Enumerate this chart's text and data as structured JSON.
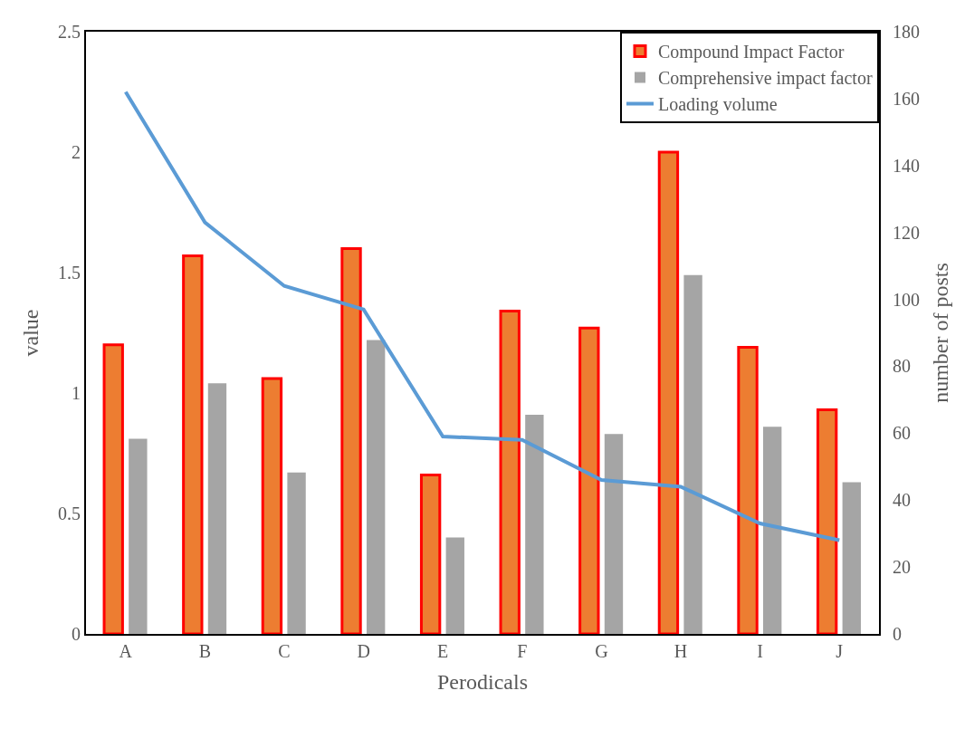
{
  "chart_data": {
    "type": "bar",
    "xlabel": "Perodicals",
    "ylabel": "value",
    "y2label": "number of posts",
    "categories": [
      "A",
      "B",
      "C",
      "D",
      "E",
      "F",
      "G",
      "H",
      "I",
      "J"
    ],
    "series": [
      {
        "name": "Compound Impact Factor",
        "color": "#ed7d31",
        "values": [
          1.2,
          1.57,
          1.06,
          1.6,
          0.66,
          1.34,
          1.27,
          2.0,
          1.19,
          0.93
        ]
      },
      {
        "name": "Comprehensive impact factor",
        "color": "#a5a5a5",
        "values": [
          0.81,
          1.04,
          0.67,
          1.22,
          0.4,
          0.91,
          0.83,
          1.49,
          0.86,
          0.63
        ]
      },
      {
        "name": "Loading volume",
        "type": "line",
        "axis": "y2",
        "color": "#5b9bd5",
        "values": [
          162,
          123,
          104,
          97,
          59,
          58,
          46,
          44,
          33,
          28
        ]
      }
    ],
    "ylim": [
      0,
      2.5
    ],
    "yticks": [
      0,
      0.5,
      1,
      1.5,
      2,
      2.5
    ],
    "y2lim": [
      0,
      180
    ],
    "y2ticks": [
      0,
      20,
      40,
      60,
      80,
      100,
      120,
      140,
      160,
      180
    ],
    "legend": "top right",
    "marker": "none",
    "line_style": "solid"
  }
}
